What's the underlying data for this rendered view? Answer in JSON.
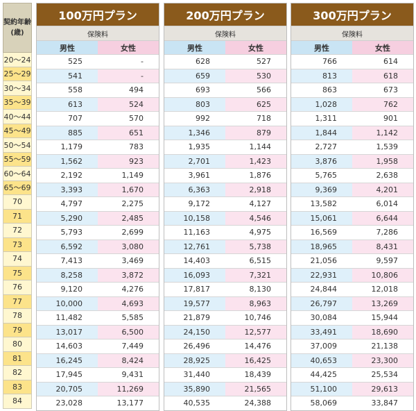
{
  "age_header_line1": "契約年齢",
  "age_header_line2": "(歳)",
  "premium_label": "保険料",
  "male_label": "男性",
  "female_label": "女性",
  "ages": [
    "20〜24",
    "25〜29",
    "30〜34",
    "35〜39",
    "40〜44",
    "45〜49",
    "50〜54",
    "55〜59",
    "60〜64",
    "65〜69",
    "70",
    "71",
    "72",
    "73",
    "74",
    "75",
    "76",
    "77",
    "78",
    "79",
    "80",
    "81",
    "82",
    "83",
    "84"
  ],
  "plans": [
    {
      "title": "100万円プラン",
      "rows": [
        [
          "525",
          "-"
        ],
        [
          "541",
          "-"
        ],
        [
          "558",
          "494"
        ],
        [
          "613",
          "524"
        ],
        [
          "707",
          "570"
        ],
        [
          "885",
          "651"
        ],
        [
          "1,179",
          "783"
        ],
        [
          "1,562",
          "923"
        ],
        [
          "2,192",
          "1,149"
        ],
        [
          "3,393",
          "1,670"
        ],
        [
          "4,797",
          "2,275"
        ],
        [
          "5,290",
          "2,485"
        ],
        [
          "5,793",
          "2,699"
        ],
        [
          "6,592",
          "3,080"
        ],
        [
          "7,413",
          "3,469"
        ],
        [
          "8,258",
          "3,872"
        ],
        [
          "9,120",
          "4,276"
        ],
        [
          "10,000",
          "4,693"
        ],
        [
          "11,482",
          "5,585"
        ],
        [
          "13,017",
          "6,500"
        ],
        [
          "14,603",
          "7,449"
        ],
        [
          "16,245",
          "8,424"
        ],
        [
          "17,945",
          "9,431"
        ],
        [
          "20,705",
          "11,269"
        ],
        [
          "23,028",
          "13,177"
        ]
      ]
    },
    {
      "title": "200万円プラン",
      "rows": [
        [
          "628",
          "527"
        ],
        [
          "659",
          "530"
        ],
        [
          "693",
          "566"
        ],
        [
          "803",
          "625"
        ],
        [
          "992",
          "718"
        ],
        [
          "1,346",
          "879"
        ],
        [
          "1,935",
          "1,144"
        ],
        [
          "2,701",
          "1,423"
        ],
        [
          "3,961",
          "1,876"
        ],
        [
          "6,363",
          "2,918"
        ],
        [
          "9,172",
          "4,127"
        ],
        [
          "10,158",
          "4,546"
        ],
        [
          "11,163",
          "4,975"
        ],
        [
          "12,761",
          "5,738"
        ],
        [
          "14,403",
          "6,515"
        ],
        [
          "16,093",
          "7,321"
        ],
        [
          "17,817",
          "8,130"
        ],
        [
          "19,577",
          "8,963"
        ],
        [
          "21,879",
          "10,746"
        ],
        [
          "24,150",
          "12,577"
        ],
        [
          "26,496",
          "14,476"
        ],
        [
          "28,925",
          "16,425"
        ],
        [
          "31,440",
          "18,439"
        ],
        [
          "35,890",
          "21,565"
        ],
        [
          "40,535",
          "24,388"
        ]
      ]
    },
    {
      "title": "300万円プラン",
      "rows": [
        [
          "766",
          "614"
        ],
        [
          "813",
          "618"
        ],
        [
          "863",
          "673"
        ],
        [
          "1,028",
          "762"
        ],
        [
          "1,311",
          "901"
        ],
        [
          "1,844",
          "1,142"
        ],
        [
          "2,727",
          "1,539"
        ],
        [
          "3,876",
          "1,958"
        ],
        [
          "5,765",
          "2,638"
        ],
        [
          "9,369",
          "4,201"
        ],
        [
          "13,582",
          "6,014"
        ],
        [
          "15,061",
          "6,644"
        ],
        [
          "16,569",
          "7,286"
        ],
        [
          "18,965",
          "8,431"
        ],
        [
          "21,056",
          "9,597"
        ],
        [
          "22,931",
          "10,806"
        ],
        [
          "24,844",
          "12,018"
        ],
        [
          "26,797",
          "13,269"
        ],
        [
          "30,084",
          "15,944"
        ],
        [
          "33,491",
          "18,690"
        ],
        [
          "37,009",
          "21,138"
        ],
        [
          "40,653",
          "23,300"
        ],
        [
          "44,425",
          "25,534"
        ],
        [
          "51,100",
          "29,613"
        ],
        [
          "58,069",
          "33,847"
        ]
      ]
    }
  ]
}
